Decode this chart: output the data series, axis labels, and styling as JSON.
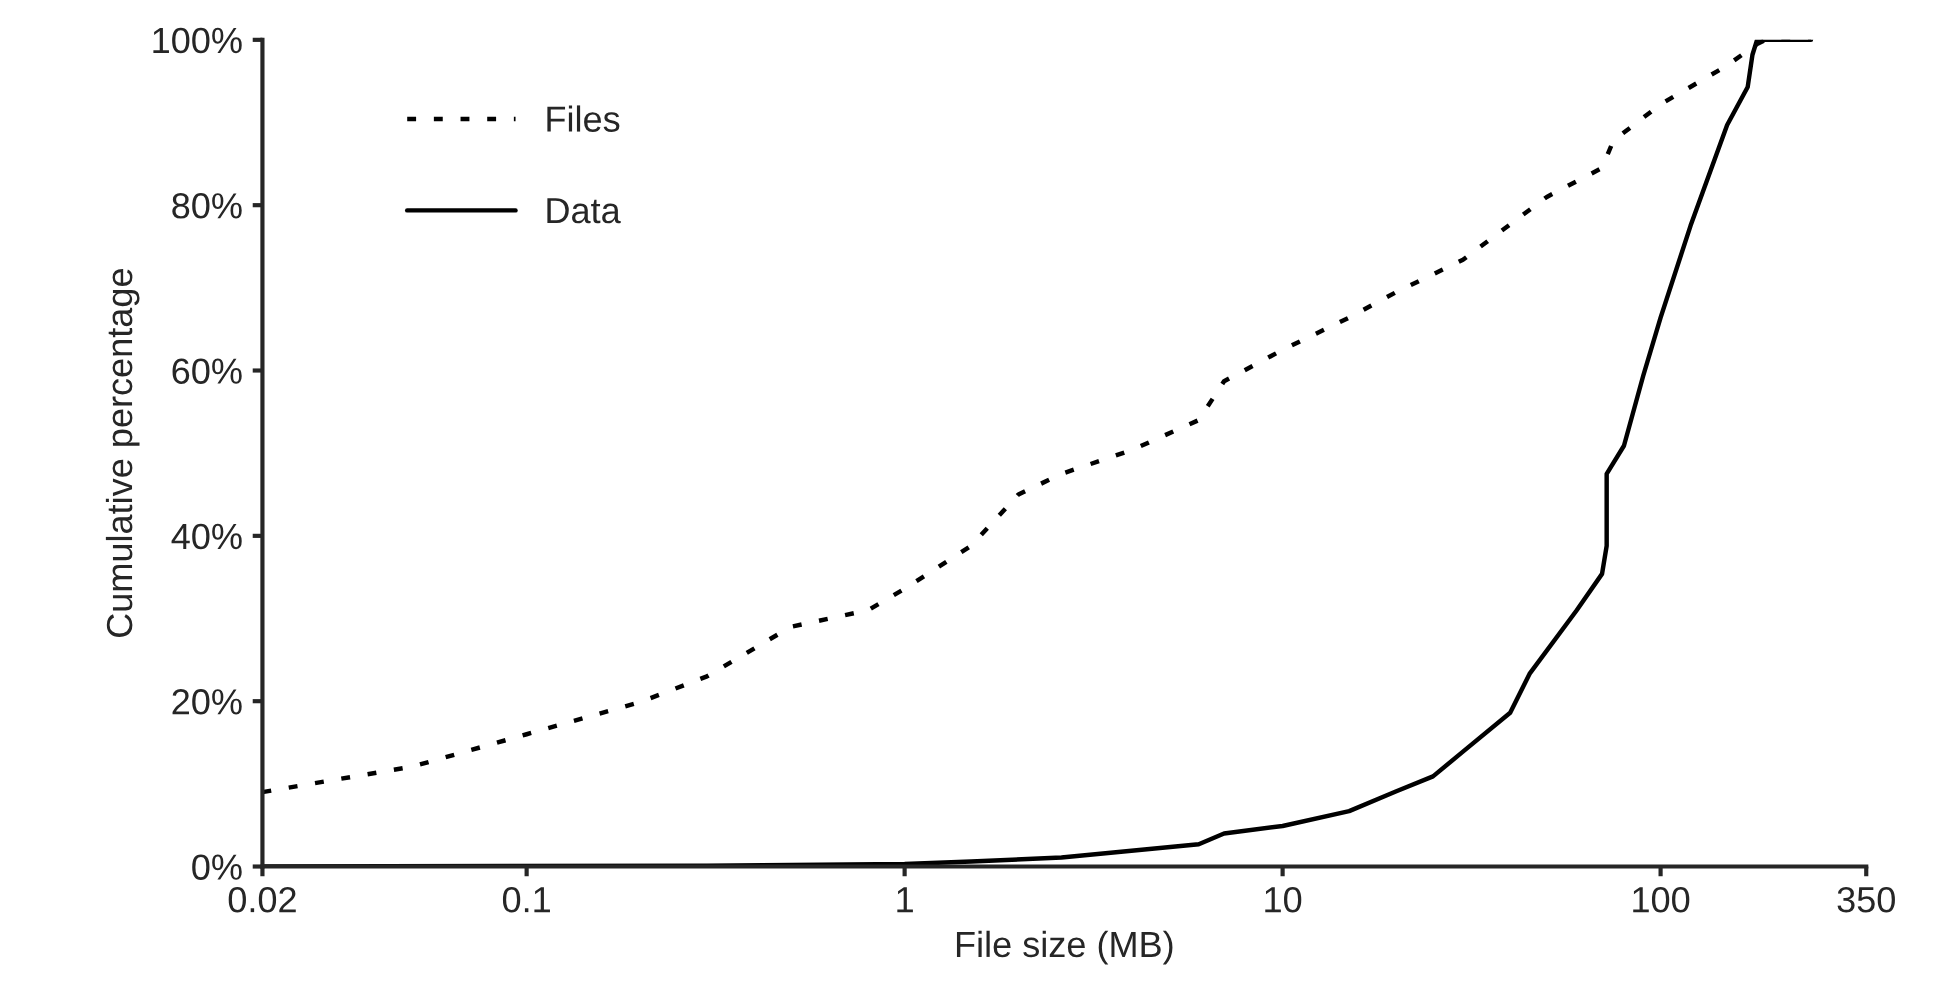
{
  "chart_data": {
    "type": "line",
    "xlabel": "File size (MB)",
    "ylabel": "Cumulative percentage",
    "log": "x",
    "xlim": [
      0.02,
      350
    ],
    "xticks": [
      0.02,
      0.1,
      1,
      10,
      100,
      350
    ],
    "ylim": [
      0,
      100
    ],
    "yticks": [
      {
        "value": 0,
        "label": "0%"
      },
      {
        "value": 20,
        "label": "20%"
      },
      {
        "value": 40,
        "label": "40%"
      },
      {
        "value": 60,
        "label": "60%"
      },
      {
        "value": 80,
        "label": "80%"
      },
      {
        "value": 100,
        "label": "100%"
      }
    ],
    "grid": false,
    "legend": "top left",
    "series": [
      {
        "name": "Files",
        "color": "#000000",
        "line_style": "dotted",
        "x": [
          0.02,
          0.05,
          0.1,
          0.2,
          0.3,
          0.5,
          0.8,
          1,
          1.5,
          2,
          2.6,
          4,
          6,
          7,
          10,
          15,
          20,
          30,
          50,
          70,
          75,
          100,
          150,
          180,
          190,
          250
        ],
        "values": [
          9,
          12.1,
          16,
          19.9,
          23,
          29,
          31,
          33.6,
          38.8,
          45,
          47.5,
          50.4,
          54,
          58.7,
          62.5,
          66.4,
          69.5,
          73.4,
          81,
          84.5,
          87.8,
          92.2,
          96.9,
          99.5,
          100,
          100
        ]
      },
      {
        "name": "Data",
        "color": "#000000",
        "line_style": "solid",
        "x": [
          0.02,
          0.3,
          1,
          1.5,
          2.6,
          6,
          7,
          10,
          15,
          20,
          25,
          30,
          40,
          45,
          60,
          70,
          72,
          72,
          80,
          90,
          100,
          120,
          150,
          170,
          175,
          180,
          250
        ],
        "values": [
          0,
          0.1,
          0.3,
          0.6,
          1.1,
          2.7,
          4,
          4.9,
          6.7,
          9.1,
          10.9,
          13.9,
          18.6,
          23.3,
          31,
          35.4,
          38.8,
          47.5,
          50.9,
          59.4,
          66.4,
          77.5,
          89.7,
          94.3,
          98.2,
          100,
          100
        ]
      }
    ]
  }
}
